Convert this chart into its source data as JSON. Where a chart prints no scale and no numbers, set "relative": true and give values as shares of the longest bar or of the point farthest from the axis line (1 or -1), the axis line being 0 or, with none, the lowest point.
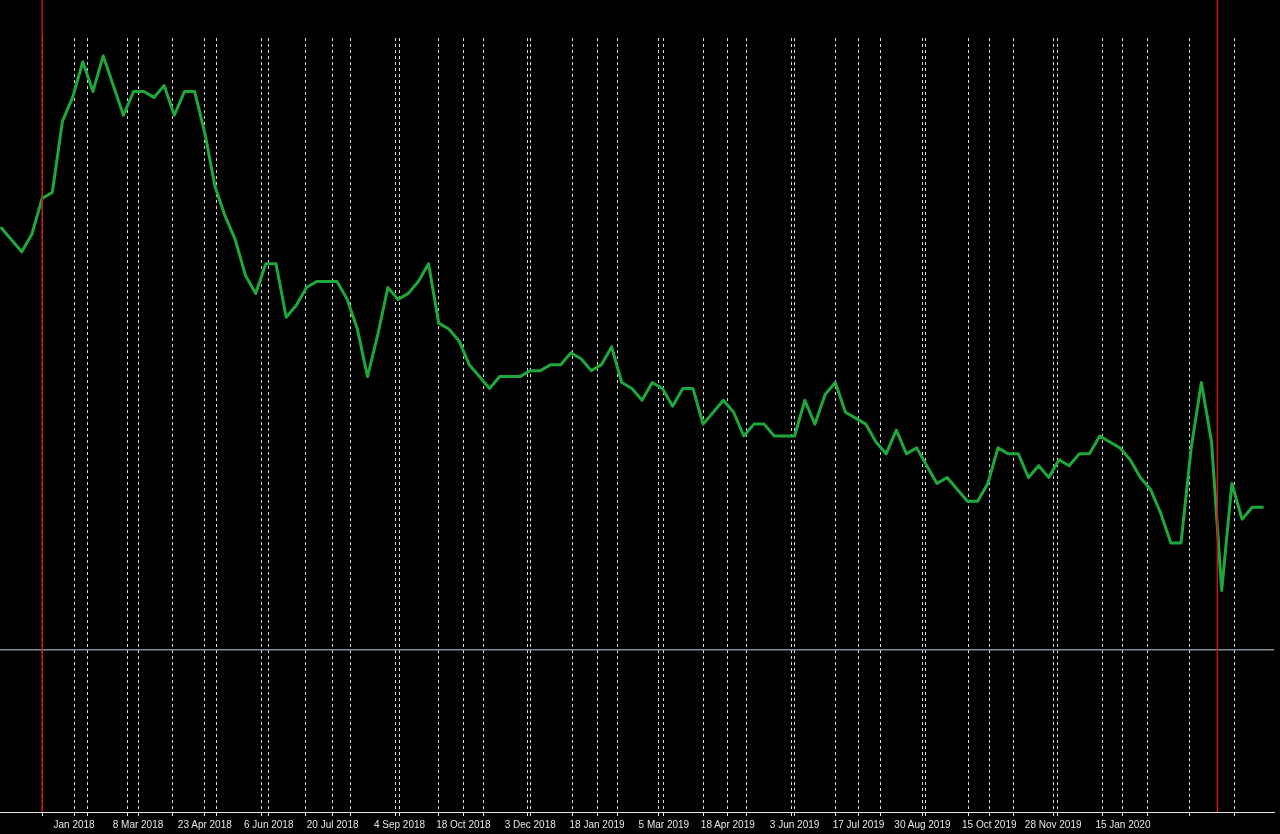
{
  "chart_data": {
    "type": "line",
    "relative": true,
    "marker": "none",
    "line_style": "solid",
    "grid": "x",
    "x": [
      "2017-12-04",
      "2017-12-11",
      "2017-12-18",
      "2017-12-25",
      "2018-01-01",
      "2018-01-08",
      "2018-01-15",
      "2018-01-22",
      "2018-01-29",
      "2018-02-05",
      "2018-02-12",
      "2018-02-19",
      "2018-02-26",
      "2018-03-05",
      "2018-03-12",
      "2018-03-19",
      "2018-03-26",
      "2018-04-02",
      "2018-04-09",
      "2018-04-16",
      "2018-04-23",
      "2018-04-30",
      "2018-05-07",
      "2018-05-14",
      "2018-05-21",
      "2018-05-28",
      "2018-06-04",
      "2018-06-11",
      "2018-06-18",
      "2018-06-25",
      "2018-07-02",
      "2018-07-09",
      "2018-07-16",
      "2018-07-23",
      "2018-07-30",
      "2018-08-06",
      "2018-08-13",
      "2018-08-20",
      "2018-08-27",
      "2018-09-03",
      "2018-09-10",
      "2018-09-17",
      "2018-09-24",
      "2018-10-01",
      "2018-10-08",
      "2018-10-15",
      "2018-10-22",
      "2018-10-29",
      "2018-11-05",
      "2018-11-12",
      "2018-11-19",
      "2018-11-26",
      "2018-12-03",
      "2018-12-10",
      "2018-12-17",
      "2018-12-24",
      "2018-12-31",
      "2019-01-07",
      "2019-01-14",
      "2019-01-21",
      "2019-01-28",
      "2019-02-04",
      "2019-02-11",
      "2019-02-18",
      "2019-02-25",
      "2019-03-04",
      "2019-03-11",
      "2019-03-18",
      "2019-03-25",
      "2019-04-01",
      "2019-04-08",
      "2019-04-15",
      "2019-04-22",
      "2019-04-29",
      "2019-05-06",
      "2019-05-13",
      "2019-05-20",
      "2019-05-27",
      "2019-06-03",
      "2019-06-10",
      "2019-06-17",
      "2019-06-24",
      "2019-07-01",
      "2019-07-08",
      "2019-07-15",
      "2019-07-22",
      "2019-07-29",
      "2019-08-05",
      "2019-08-12",
      "2019-08-19",
      "2019-08-26",
      "2019-09-02",
      "2019-09-09",
      "2019-09-16",
      "2019-09-23",
      "2019-09-30",
      "2019-10-07",
      "2019-10-14",
      "2019-10-21",
      "2019-10-28",
      "2019-11-04",
      "2019-11-11",
      "2019-11-18",
      "2019-11-25",
      "2019-12-02",
      "2019-12-09",
      "2019-12-16",
      "2019-12-23",
      "2019-12-30",
      "2020-01-06",
      "2020-01-13",
      "2020-01-20",
      "2020-01-27",
      "2020-02-03",
      "2020-02-10",
      "2020-02-17",
      "2020-02-24",
      "2020-03-02",
      "2020-03-09",
      "2020-03-16",
      "2020-03-23",
      "2020-03-30",
      "2020-04-06",
      "2020-04-13",
      "2020-04-20"
    ],
    "series": [
      {
        "color": "#1ea83c",
        "values": [
          0.71,
          0.69,
          0.67,
          0.7,
          0.76,
          0.77,
          0.89,
          0.93,
          0.99,
          0.94,
          1.0,
          0.95,
          0.9,
          0.94,
          0.94,
          0.93,
          0.95,
          0.9,
          0.94,
          0.94,
          0.87,
          0.78,
          0.73,
          0.69,
          0.63,
          0.6,
          0.65,
          0.65,
          0.56,
          0.58,
          0.61,
          0.62,
          0.62,
          0.62,
          0.59,
          0.54,
          0.46,
          0.53,
          0.61,
          0.59,
          0.6,
          0.62,
          0.65,
          0.55,
          0.54,
          0.52,
          0.48,
          0.46,
          0.44,
          0.46,
          0.46,
          0.46,
          0.47,
          0.47,
          0.48,
          0.48,
          0.5,
          0.49,
          0.47,
          0.48,
          0.51,
          0.45,
          0.44,
          0.42,
          0.45,
          0.44,
          0.41,
          0.44,
          0.44,
          0.38,
          0.4,
          0.42,
          0.4,
          0.36,
          0.38,
          0.38,
          0.36,
          0.36,
          0.36,
          0.42,
          0.38,
          0.43,
          0.45,
          0.4,
          0.39,
          0.38,
          0.35,
          0.33,
          0.37,
          0.33,
          0.34,
          0.31,
          0.28,
          0.29,
          0.27,
          0.25,
          0.25,
          0.28,
          0.34,
          0.33,
          0.33,
          0.29,
          0.31,
          0.29,
          0.32,
          0.31,
          0.33,
          0.33,
          0.36,
          0.35,
          0.34,
          0.32,
          0.29,
          0.27,
          0.23,
          0.18,
          0.18,
          0.34,
          0.45,
          0.35,
          0.1,
          0.28,
          0.22,
          0.24,
          0.24
        ]
      }
    ],
    "xlim": [
      "2017-12-03",
      "2020-04-28"
    ],
    "xticks": [
      {
        "value": "2018-01-01",
        "label": null
      },
      {
        "value": "2018-01-23",
        "label": "Jan 2018"
      },
      {
        "value": "2018-02-01",
        "label": null
      },
      {
        "value": "2018-03-01",
        "label": null
      },
      {
        "value": "2018-03-08",
        "label": "8 Mar 2018"
      },
      {
        "value": "2018-04-01",
        "label": null
      },
      {
        "value": "2018-04-23",
        "label": "23 Apr 2018"
      },
      {
        "value": "2018-05-01",
        "label": null
      },
      {
        "value": "2018-06-01",
        "label": null
      },
      {
        "value": "2018-06-06",
        "label": "6 Jun 2018"
      },
      {
        "value": "2018-07-01",
        "label": null
      },
      {
        "value": "2018-07-20",
        "label": "20 Jul 2018"
      },
      {
        "value": "2018-08-01",
        "label": null
      },
      {
        "value": "2018-09-01",
        "label": null
      },
      {
        "value": "2018-09-04",
        "label": "4 Sep 2018"
      },
      {
        "value": "2018-10-01",
        "label": null
      },
      {
        "value": "2018-10-18",
        "label": "18 Oct 2018"
      },
      {
        "value": "2018-11-01",
        "label": null
      },
      {
        "value": "2018-12-01",
        "label": null
      },
      {
        "value": "2018-12-03",
        "label": "3 Dec 2018"
      },
      {
        "value": "2019-01-01",
        "label": null
      },
      {
        "value": "2019-01-18",
        "label": "18 Jan 2019"
      },
      {
        "value": "2019-02-01",
        "label": null
      },
      {
        "value": "2019-03-01",
        "label": null
      },
      {
        "value": "2019-03-05",
        "label": "5 Mar 2019"
      },
      {
        "value": "2019-04-01",
        "label": null
      },
      {
        "value": "2019-04-18",
        "label": "18 Apr 2019"
      },
      {
        "value": "2019-05-01",
        "label": null
      },
      {
        "value": "2019-06-01",
        "label": null
      },
      {
        "value": "2019-06-03",
        "label": "3 Jun 2019"
      },
      {
        "value": "2019-07-01",
        "label": null
      },
      {
        "value": "2019-07-17",
        "label": "17 Jul 2019"
      },
      {
        "value": "2019-08-01",
        "label": null
      },
      {
        "value": "2019-08-30",
        "label": "30 Aug 2019"
      },
      {
        "value": "2019-09-01",
        "label": null
      },
      {
        "value": "2019-10-01",
        "label": null
      },
      {
        "value": "2019-10-15",
        "label": "15 Oct 2019"
      },
      {
        "value": "2019-11-01",
        "label": null
      },
      {
        "value": "2019-11-28",
        "label": "28 Nov 2019"
      },
      {
        "value": "2019-12-01",
        "label": null
      },
      {
        "value": "2020-01-01",
        "label": null
      },
      {
        "value": "2020-01-15",
        "label": "15 Jan 2020"
      },
      {
        "value": "2020-02-01",
        "label": null
      },
      {
        "value": "2020-03-01",
        "label": null
      },
      {
        "value": "2020-04-01",
        "label": null
      }
    ],
    "ref_lines": [
      {
        "axis": "x",
        "value": "2018-01-01",
        "color": "#c81414"
      },
      {
        "axis": "x",
        "value": "2020-03-20",
        "color": "#c81414"
      }
    ]
  }
}
